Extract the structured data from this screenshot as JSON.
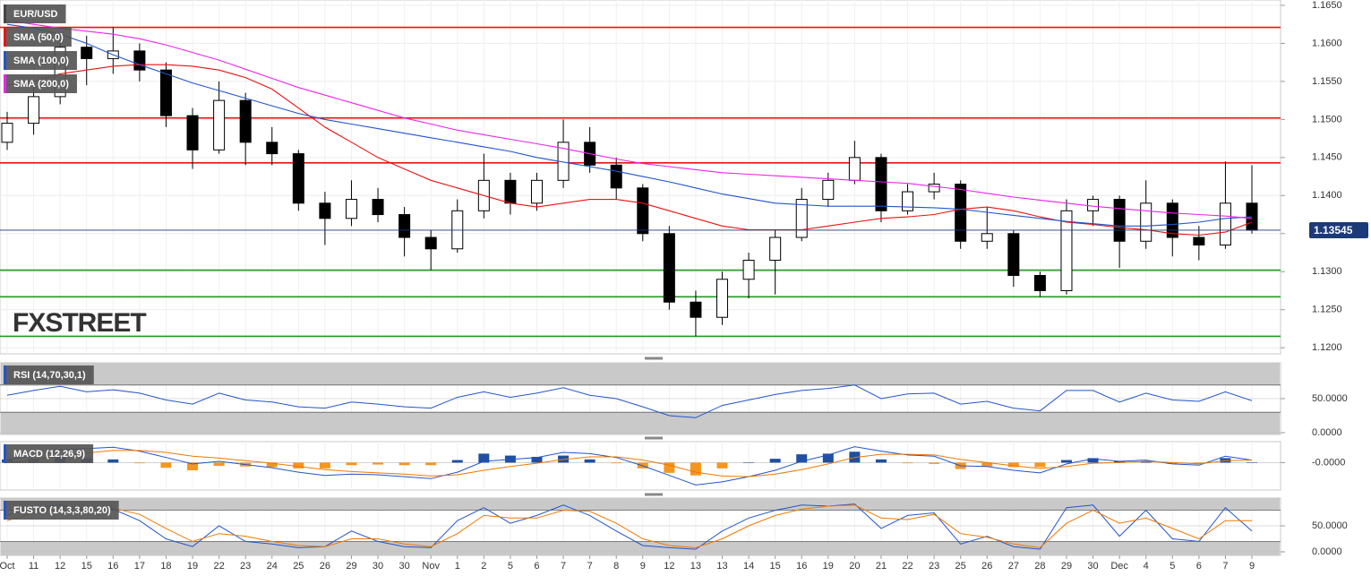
{
  "chart_data": [
    {
      "type": "candlestick",
      "categories": [
        "Oct",
        "11",
        "12",
        "15",
        "16",
        "17",
        "18",
        "19",
        "22",
        "23",
        "24",
        "25",
        "26",
        "29",
        "30",
        "30",
        "Nov",
        "1",
        "2",
        "5",
        "6",
        "7",
        "7",
        "8",
        "9",
        "12",
        "13",
        "13",
        "14",
        "15",
        "16",
        "19",
        "20",
        "21",
        "22",
        "23",
        "25",
        "26",
        "27",
        "28",
        "29",
        "30",
        "Dec",
        "4",
        "5",
        "6",
        "7",
        "9"
      ],
      "series": [
        {
          "name": "EUR/USD",
          "up_color": "#ffffff",
          "down_color": "#000000",
          "open": [
            1.147,
            1.1495,
            1.153,
            1.1595,
            1.158,
            1.159,
            1.1565,
            1.1505,
            1.146,
            1.1525,
            1.147,
            1.1455,
            1.139,
            1.137,
            1.1395,
            1.1375,
            1.1345,
            1.133,
            1.138,
            1.142,
            1.139,
            1.142,
            1.147,
            1.144,
            1.141,
            1.135,
            1.126,
            1.124,
            1.129,
            1.1315,
            1.1345,
            1.1395,
            1.142,
            1.145,
            1.138,
            1.1405,
            1.1415,
            1.134,
            1.135,
            1.1295,
            1.1275,
            1.138,
            1.1395,
            1.134,
            1.139,
            1.1345,
            1.1335,
            1.139
          ],
          "high": [
            1.151,
            1.1545,
            1.161,
            1.161,
            1.1621,
            1.16,
            1.1575,
            1.1515,
            1.155,
            1.1535,
            1.149,
            1.146,
            1.1405,
            1.142,
            1.141,
            1.1385,
            1.1355,
            1.1395,
            1.1455,
            1.143,
            1.143,
            1.15,
            1.149,
            1.145,
            1.1415,
            1.136,
            1.1275,
            1.13,
            1.1325,
            1.1355,
            1.141,
            1.143,
            1.1472,
            1.1455,
            1.1415,
            1.143,
            1.142,
            1.1385,
            1.1355,
            1.13,
            1.1395,
            1.14,
            1.14,
            1.142,
            1.1395,
            1.136,
            1.1445,
            1.144
          ],
          "low": [
            1.146,
            1.148,
            1.152,
            1.1545,
            1.156,
            1.155,
            1.149,
            1.1435,
            1.1455,
            1.144,
            1.144,
            1.138,
            1.1335,
            1.136,
            1.1365,
            1.132,
            1.1302,
            1.1325,
            1.137,
            1.1375,
            1.138,
            1.141,
            1.143,
            1.1395,
            1.134,
            1.125,
            1.1215,
            1.123,
            1.1265,
            1.127,
            1.134,
            1.1385,
            1.1415,
            1.1365,
            1.1375,
            1.1395,
            1.133,
            1.133,
            1.128,
            1.1267,
            1.127,
            1.136,
            1.1305,
            1.133,
            1.132,
            1.1315,
            1.133,
            1.135
          ],
          "close": [
            1.1495,
            1.153,
            1.1595,
            1.158,
            1.159,
            1.1565,
            1.1505,
            1.146,
            1.1525,
            1.147,
            1.1455,
            1.139,
            1.137,
            1.1395,
            1.1375,
            1.1345,
            1.133,
            1.138,
            1.142,
            1.139,
            1.142,
            1.147,
            1.144,
            1.141,
            1.135,
            1.126,
            1.124,
            1.129,
            1.1315,
            1.1345,
            1.1395,
            1.142,
            1.145,
            1.138,
            1.1405,
            1.1415,
            1.134,
            1.135,
            1.1295,
            1.1275,
            1.138,
            1.1395,
            1.134,
            1.139,
            1.1345,
            1.1335,
            1.139,
            1.13545
          ]
        }
      ],
      "overlays": [
        {
          "name": "SMA (50,0)",
          "color": "#ee1111",
          "values": [
            1.1545,
            1.155,
            1.156,
            1.1565,
            1.157,
            1.1572,
            1.1572,
            1.157,
            1.1565,
            1.1555,
            1.154,
            1.1515,
            1.149,
            1.147,
            1.145,
            1.1435,
            1.142,
            1.141,
            1.14,
            1.139,
            1.1385,
            1.139,
            1.1395,
            1.1395,
            1.139,
            1.138,
            1.137,
            1.136,
            1.1355,
            1.1355,
            1.1355,
            1.136,
            1.1365,
            1.137,
            1.1372,
            1.1375,
            1.1382,
            1.1385,
            1.138,
            1.1372,
            1.1365,
            1.1362,
            1.1358,
            1.1355,
            1.135,
            1.1348,
            1.1352,
            1.1365
          ]
        },
        {
          "name": "SMA (100,0)",
          "color": "#2255cc",
          "values": [
            1.1625,
            1.162,
            1.1612,
            1.16,
            1.1585,
            1.1572,
            1.156,
            1.1548,
            1.1538,
            1.1528,
            1.1518,
            1.1508,
            1.15,
            1.1494,
            1.1488,
            1.1482,
            1.1476,
            1.147,
            1.1464,
            1.1458,
            1.145,
            1.1444,
            1.1438,
            1.1432,
            1.1425,
            1.1418,
            1.141,
            1.1402,
            1.1396,
            1.139,
            1.1388,
            1.1386,
            1.1386,
            1.1386,
            1.1385,
            1.1384,
            1.1382,
            1.1378,
            1.1374,
            1.137,
            1.1366,
            1.1363,
            1.136,
            1.136,
            1.1362,
            1.1365,
            1.137,
            1.1372
          ]
        },
        {
          "name": "SMA (200,0)",
          "color": "#ee22ee",
          "values": [
            1.163,
            1.1625,
            1.162,
            1.1616,
            1.1612,
            1.1606,
            1.1598,
            1.1588,
            1.1578,
            1.1566,
            1.1554,
            1.1542,
            1.1532,
            1.1522,
            1.1512,
            1.1502,
            1.1494,
            1.1486,
            1.148,
            1.1474,
            1.1468,
            1.1462,
            1.1455,
            1.1448,
            1.1442,
            1.1438,
            1.1434,
            1.143,
            1.1428,
            1.1426,
            1.1424,
            1.1422,
            1.142,
            1.1418,
            1.1416,
            1.1412,
            1.1408,
            1.1403,
            1.1398,
            1.1394,
            1.139,
            1.1386,
            1.1383,
            1.138,
            1.1377,
            1.1375,
            1.1373,
            1.137
          ]
        }
      ],
      "levels": [
        {
          "value": 1.1621,
          "color": "#ee1111"
        },
        {
          "value": 1.1502,
          "color": "#ee1111"
        },
        {
          "value": 1.1443,
          "color": "#ee1111"
        },
        {
          "value": 1.1302,
          "color": "#229922"
        },
        {
          "value": 1.1267,
          "color": "#229922"
        },
        {
          "value": 1.1215,
          "color": "#229922"
        }
      ],
      "last_price": {
        "value": 1.13545,
        "label": "1.13545",
        "color": "#1c3a78"
      },
      "watermark": "FXSTREET",
      "ylim": [
        1.1192,
        1.1657
      ],
      "yticks": [
        {
          "value": 1.12,
          "label": "1.1200"
        },
        {
          "value": 1.125,
          "label": "1.1250"
        },
        {
          "value": 1.13,
          "label": "1.1300"
        },
        {
          "value": 1.135,
          "label": "1.1350"
        },
        {
          "value": 1.14,
          "label": "1.1400"
        },
        {
          "value": 1.145,
          "label": "1.1450"
        },
        {
          "value": 1.15,
          "label": "1.1500"
        },
        {
          "value": 1.155,
          "label": "1.1550"
        },
        {
          "value": 1.16,
          "label": "1.1600"
        },
        {
          "value": 1.165,
          "label": "1.1650"
        }
      ],
      "grid": true
    },
    {
      "type": "line",
      "title": "RSI (14,70,30,1)",
      "bands": [
        30,
        70
      ],
      "series": [
        {
          "color": "#2255cc",
          "values": [
            55,
            62,
            68,
            60,
            63,
            58,
            48,
            42,
            58,
            48,
            45,
            38,
            36,
            45,
            42,
            38,
            36,
            52,
            60,
            52,
            58,
            66,
            55,
            50,
            38,
            25,
            22,
            40,
            48,
            56,
            62,
            65,
            70,
            50,
            57,
            58,
            42,
            46,
            36,
            32,
            62,
            62,
            45,
            58,
            48,
            46,
            60,
            47
          ]
        }
      ],
      "ylim": [
        0,
        100
      ],
      "yticks": [
        {
          "value": 0,
          "label": "0.0000"
        },
        {
          "value": 50,
          "label": "50.0000"
        }
      ]
    },
    {
      "type": "line",
      "title": "MACD (12,26,9)",
      "series": [
        {
          "color": "#2255cc",
          "values": [
            0.0005,
            0.001,
            0.002,
            0.0022,
            0.0024,
            0.0018,
            0.0008,
            -0.0002,
            0.0002,
            -0.0003,
            -0.0008,
            -0.0015,
            -0.002,
            -0.0018,
            -0.0019,
            -0.0022,
            -0.0025,
            -0.0015,
            0.0002,
            0.0005,
            0.0008,
            0.0016,
            0.0014,
            0.0008,
            -0.0005,
            -0.002,
            -0.0035,
            -0.003,
            -0.0022,
            -0.0012,
            0.0002,
            0.0012,
            0.0025,
            0.0018,
            0.0012,
            0.001,
            -0.0005,
            -0.0006,
            -0.0012,
            -0.0016,
            -0.0002,
            0.0006,
            0.0002,
            0.0004,
            -0.0002,
            -0.0004,
            0.001,
            0.0004
          ]
        },
        {
          "color": "#f07800",
          "values": [
            0.0,
            0.0004,
            0.001,
            0.0015,
            0.0019,
            0.0019,
            0.0016,
            0.001,
            0.0007,
            0.0003,
            -0.0001,
            -0.0006,
            -0.0011,
            -0.0014,
            -0.0016,
            -0.0018,
            -0.0021,
            -0.0019,
            -0.0012,
            -0.0006,
            -0.0001,
            0.0005,
            0.0009,
            0.0009,
            0.0004,
            -0.0004,
            -0.0015,
            -0.0021,
            -0.0022,
            -0.0018,
            -0.0011,
            -0.0002,
            0.0008,
            0.0013,
            0.0013,
            0.0012,
            0.0005,
            0.0,
            -0.0005,
            -0.0009,
            -0.0006,
            -0.0001,
            0.0,
            0.0002,
            0.0,
            -0.0002,
            0.0003,
            0.0004
          ]
        }
      ],
      "histogram": {
        "up_color": "#1f4fa0",
        "down_color": "#f5961e",
        "values": [
          0.0005,
          0.0006,
          0.001,
          0.0007,
          0.0005,
          -0.0001,
          -0.0008,
          -0.0012,
          -0.0005,
          -0.0006,
          -0.0007,
          -0.0009,
          -0.0009,
          -0.0004,
          -0.0003,
          -0.0004,
          -0.0004,
          0.0004,
          0.0014,
          0.0011,
          0.0009,
          0.0011,
          0.0005,
          -0.0001,
          -0.0009,
          -0.0016,
          -0.002,
          -0.0009,
          0.0,
          0.0006,
          0.0013,
          0.0014,
          0.0017,
          0.0005,
          -0.0001,
          -0.0002,
          -0.001,
          -0.0006,
          -0.0007,
          -0.0007,
          0.0004,
          0.0007,
          0.0002,
          0.0002,
          -0.0002,
          -0.0002,
          0.0007,
          0.0
        ]
      },
      "ylim": [
        -0.004,
        0.003
      ],
      "yticks": [
        {
          "value": 0,
          "label": "-0.0000"
        }
      ]
    },
    {
      "type": "line",
      "title": "FUSTO (14,3,3,80,20)",
      "bands": [
        20,
        80
      ],
      "series": [
        {
          "color": "#2255cc",
          "values": [
            70,
            85,
            90,
            80,
            82,
            60,
            25,
            10,
            50,
            20,
            15,
            8,
            10,
            40,
            20,
            10,
            8,
            60,
            85,
            55,
            70,
            90,
            70,
            40,
            12,
            8,
            5,
            40,
            65,
            80,
            90,
            88,
            92,
            45,
            70,
            75,
            15,
            30,
            10,
            5,
            85,
            90,
            30,
            80,
            25,
            20,
            85,
            40
          ]
        },
        {
          "color": "#f07800",
          "values": [
            60,
            75,
            85,
            85,
            84,
            72,
            45,
            20,
            35,
            30,
            20,
            12,
            10,
            25,
            25,
            15,
            10,
            35,
            70,
            65,
            65,
            80,
            78,
            55,
            25,
            12,
            8,
            25,
            50,
            70,
            82,
            88,
            90,
            65,
            62,
            72,
            35,
            28,
            15,
            8,
            55,
            80,
            55,
            65,
            45,
            25,
            60,
            60
          ]
        }
      ],
      "ylim": [
        0,
        100
      ],
      "yticks": [
        {
          "value": 0,
          "label": "0.0000"
        },
        {
          "value": 50,
          "label": "50.0000"
        }
      ]
    }
  ]
}
